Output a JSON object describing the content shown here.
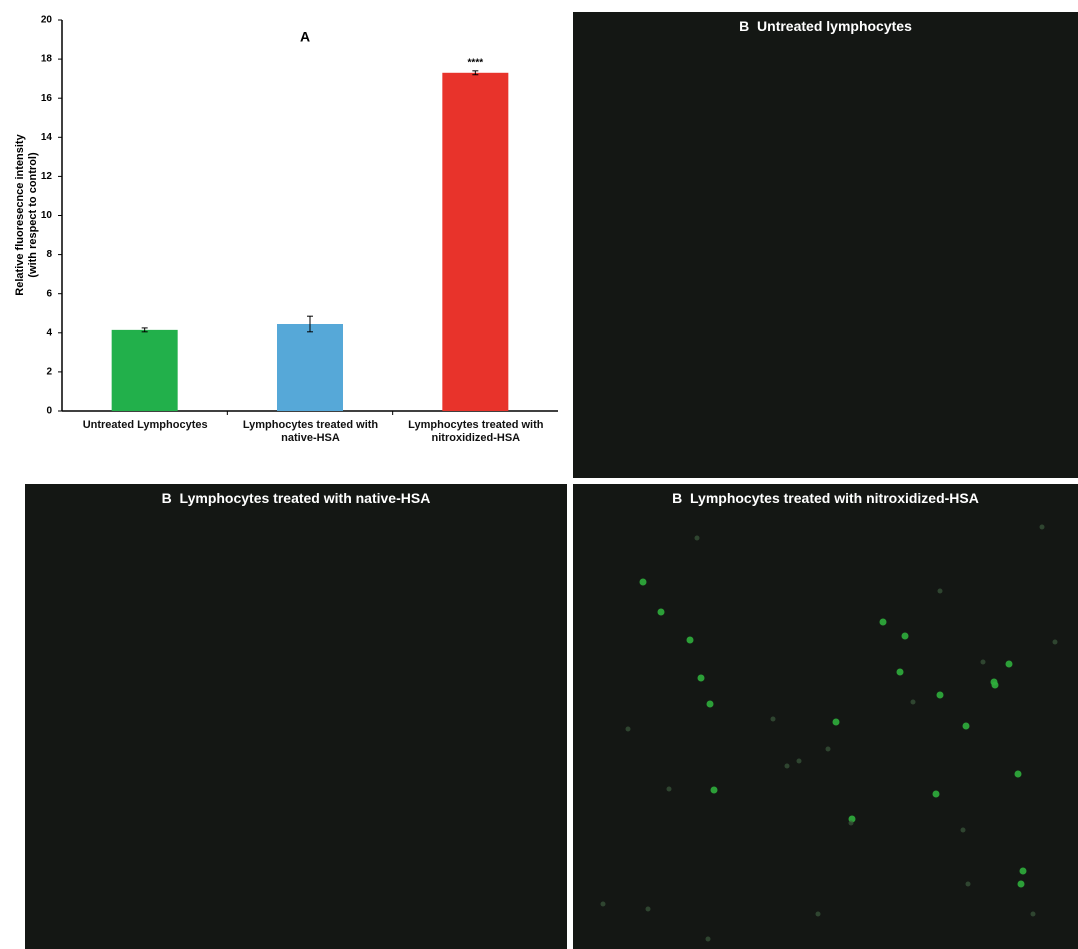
{
  "chart_data": {
    "type": "bar",
    "title": "A",
    "y_label": [
      "Relative fluoresecnce intensity",
      "(with respect to control)"
    ],
    "categories": [
      "Untreated Lymphocytes",
      "Lymphocytes treated with native-HSA",
      "Lymphocytes treated with nitroxidized-HSA"
    ],
    "values": [
      4.15,
      4.45,
      17.3
    ],
    "errors": [
      0.1,
      0.4,
      0.1
    ],
    "colors": [
      "#22b04b",
      "#56a8d8",
      "#e8332b"
    ],
    "significance": [
      null,
      null,
      "****"
    ],
    "ylim": [
      0,
      20
    ],
    "yticks": [
      0,
      2,
      4,
      6,
      8,
      10,
      12,
      14,
      16,
      18,
      20
    ],
    "grid": false
  },
  "panels": [
    {
      "title": "B  Untreated lymphocytes"
    },
    {
      "title": "B  Lymphocytes treated with native-HSA"
    },
    {
      "title": "B  Lymphocytes treated with nitroxidized-HSA"
    }
  ]
}
